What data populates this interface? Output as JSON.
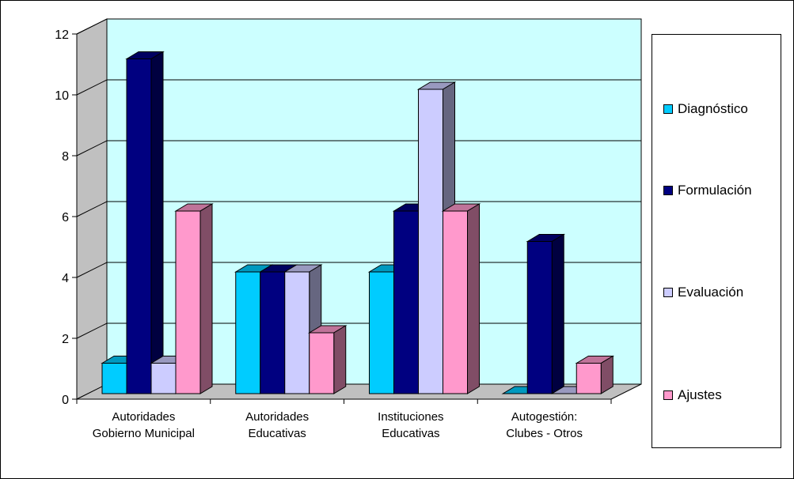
{
  "chart_data": {
    "type": "bar",
    "three_d": true,
    "categories": [
      [
        "Autoridades",
        "Gobierno Municipal"
      ],
      [
        "Autoridades",
        "Educativas"
      ],
      [
        "Instituciones",
        "Educativas"
      ],
      [
        "Autogestión:",
        "Clubes - Otros"
      ]
    ],
    "series": [
      {
        "name": "Diagnóstico",
        "values": [
          1,
          4,
          4,
          0
        ],
        "color": "#00CCFF"
      },
      {
        "name": "Formulación",
        "values": [
          11,
          4,
          6,
          5
        ],
        "color": "#000080"
      },
      {
        "name": "Evaluación",
        "values": [
          1,
          4,
          10,
          0
        ],
        "color": "#CCCCFF"
      },
      {
        "name": "Ajustes",
        "values": [
          6,
          2,
          6,
          1
        ],
        "color": "#FF99CC"
      }
    ],
    "ylim": [
      0,
      12
    ],
    "yticks": [
      0,
      2,
      4,
      6,
      8,
      10,
      12
    ],
    "grid": true,
    "legend_position": "right",
    "plot_background": "#CCFFFF"
  }
}
